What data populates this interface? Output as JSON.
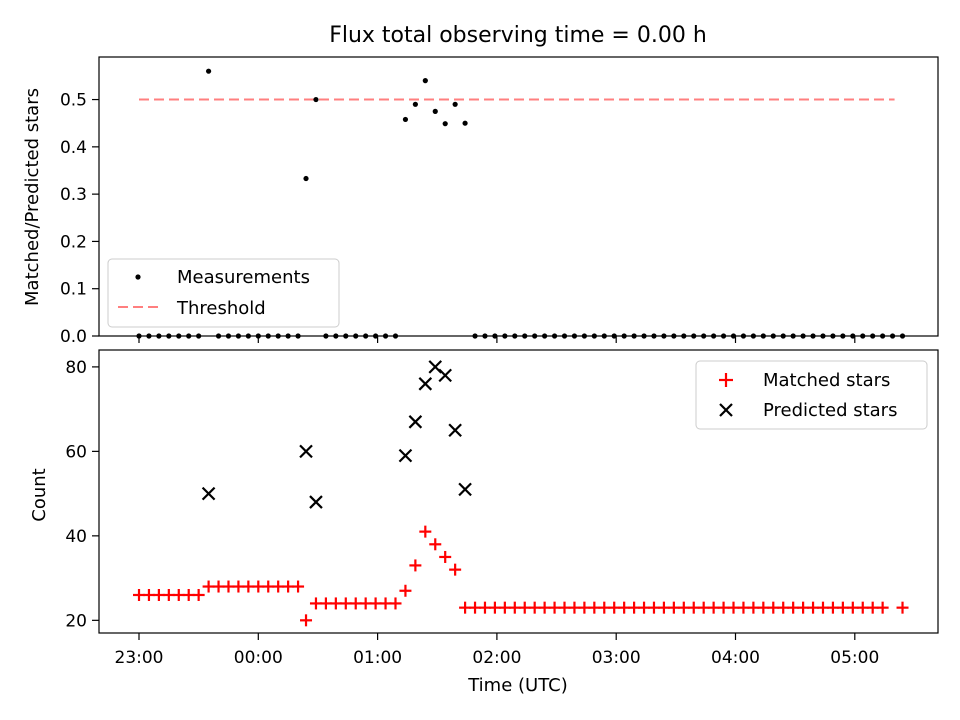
{
  "title": "Flux total observing time = 0.00 h",
  "xlabel": "Time (UTC)",
  "x_ticks": [
    "23:00",
    "00:00",
    "01:00",
    "02:00",
    "03:00",
    "04:00",
    "05:00"
  ],
  "chart_data": [
    {
      "type": "scatter",
      "ylabel": "Matched/Predicted stars",
      "ylim": [
        0,
        0.59
      ],
      "y_ticks": [
        "0.0",
        "0.1",
        "0.2",
        "0.3",
        "0.4",
        "0.5"
      ],
      "legend": {
        "placement": "lower-left",
        "entries": [
          "Measurements",
          "Threshold"
        ]
      },
      "threshold": {
        "name": "Threshold",
        "value": 0.5,
        "x_range": [
          "23:00",
          "05:20"
        ],
        "color": "#ff7f7f"
      },
      "series": [
        {
          "name": "Measurements",
          "color": "#000000",
          "points": [
            [
              "23:00",
              0
            ],
            [
              "23:05",
              0
            ],
            [
              "23:10",
              0
            ],
            [
              "23:15",
              0
            ],
            [
              "23:20",
              0
            ],
            [
              "23:25",
              0
            ],
            [
              "23:30",
              0
            ],
            [
              "23:35",
              0.56
            ],
            [
              "23:40",
              0
            ],
            [
              "23:45",
              0
            ],
            [
              "23:50",
              0
            ],
            [
              "23:55",
              0
            ],
            [
              "00:00",
              0
            ],
            [
              "00:05",
              0
            ],
            [
              "00:10",
              0
            ],
            [
              "00:15",
              0
            ],
            [
              "00:20",
              0
            ],
            [
              "00:24",
              0.333
            ],
            [
              "00:29",
              0.5
            ],
            [
              "00:34",
              0
            ],
            [
              "00:39",
              0
            ],
            [
              "00:44",
              0
            ],
            [
              "00:49",
              0
            ],
            [
              "00:54",
              0
            ],
            [
              "00:59",
              0
            ],
            [
              "01:04",
              0
            ],
            [
              "01:09",
              0
            ],
            [
              "01:14",
              0.458
            ],
            [
              "01:19",
              0.49
            ],
            [
              "01:24",
              0.54
            ],
            [
              "01:29",
              0.475
            ],
            [
              "01:34",
              0.449
            ],
            [
              "01:39",
              0.49
            ],
            [
              "01:44",
              0.45
            ],
            [
              "01:49",
              0
            ],
            [
              "01:54",
              0
            ],
            [
              "01:59",
              0
            ],
            [
              "02:04",
              0
            ],
            [
              "02:09",
              0
            ],
            [
              "02:14",
              0
            ],
            [
              "02:19",
              0
            ],
            [
              "02:24",
              0
            ],
            [
              "02:29",
              0
            ],
            [
              "02:34",
              0
            ],
            [
              "02:39",
              0
            ],
            [
              "02:44",
              0
            ],
            [
              "02:49",
              0
            ],
            [
              "02:54",
              0
            ],
            [
              "02:59",
              0
            ],
            [
              "03:04",
              0
            ],
            [
              "03:09",
              0
            ],
            [
              "03:14",
              0
            ],
            [
              "03:19",
              0
            ],
            [
              "03:24",
              0
            ],
            [
              "03:29",
              0
            ],
            [
              "03:34",
              0
            ],
            [
              "03:39",
              0
            ],
            [
              "03:44",
              0
            ],
            [
              "03:49",
              0
            ],
            [
              "03:54",
              0
            ],
            [
              "03:59",
              0
            ],
            [
              "04:04",
              0
            ],
            [
              "04:09",
              0
            ],
            [
              "04:14",
              0
            ],
            [
              "04:19",
              0
            ],
            [
              "04:24",
              0
            ],
            [
              "04:29",
              0
            ],
            [
              "04:34",
              0
            ],
            [
              "04:39",
              0
            ],
            [
              "04:44",
              0
            ],
            [
              "04:49",
              0
            ],
            [
              "04:54",
              0
            ],
            [
              "04:59",
              0
            ],
            [
              "05:04",
              0
            ],
            [
              "05:09",
              0
            ],
            [
              "05:14",
              0
            ],
            [
              "05:19",
              0
            ],
            [
              "05:24",
              0
            ]
          ]
        }
      ]
    },
    {
      "type": "scatter",
      "ylabel": "Count",
      "ylim": [
        17,
        84
      ],
      "y_ticks": [
        "20",
        "40",
        "60",
        "80"
      ],
      "legend": {
        "placement": "top-right",
        "entries": [
          "Matched stars",
          "Predicted stars"
        ]
      },
      "series": [
        {
          "name": "Matched stars",
          "color": "#ff0000",
          "points": [
            [
              "23:00",
              26
            ],
            [
              "23:05",
              26
            ],
            [
              "23:10",
              26
            ],
            [
              "23:15",
              26
            ],
            [
              "23:20",
              26
            ],
            [
              "23:25",
              26
            ],
            [
              "23:30",
              26
            ],
            [
              "23:35",
              28
            ],
            [
              "23:40",
              28
            ],
            [
              "23:45",
              28
            ],
            [
              "23:50",
              28
            ],
            [
              "23:55",
              28
            ],
            [
              "00:00",
              28
            ],
            [
              "00:05",
              28
            ],
            [
              "00:10",
              28
            ],
            [
              "00:15",
              28
            ],
            [
              "00:20",
              28
            ],
            [
              "00:24",
              20
            ],
            [
              "00:29",
              24
            ],
            [
              "00:34",
              24
            ],
            [
              "00:39",
              24
            ],
            [
              "00:44",
              24
            ],
            [
              "00:49",
              24
            ],
            [
              "00:54",
              24
            ],
            [
              "00:59",
              24
            ],
            [
              "01:04",
              24
            ],
            [
              "01:09",
              24
            ],
            [
              "01:14",
              27
            ],
            [
              "01:19",
              33
            ],
            [
              "01:24",
              41
            ],
            [
              "01:29",
              38
            ],
            [
              "01:34",
              35
            ],
            [
              "01:39",
              32
            ],
            [
              "01:44",
              23
            ],
            [
              "01:49",
              23
            ],
            [
              "01:54",
              23
            ],
            [
              "01:59",
              23
            ],
            [
              "02:04",
              23
            ],
            [
              "02:09",
              23
            ],
            [
              "02:14",
              23
            ],
            [
              "02:19",
              23
            ],
            [
              "02:24",
              23
            ],
            [
              "02:29",
              23
            ],
            [
              "02:34",
              23
            ],
            [
              "02:39",
              23
            ],
            [
              "02:44",
              23
            ],
            [
              "02:49",
              23
            ],
            [
              "02:54",
              23
            ],
            [
              "02:59",
              23
            ],
            [
              "03:04",
              23
            ],
            [
              "03:09",
              23
            ],
            [
              "03:14",
              23
            ],
            [
              "03:19",
              23
            ],
            [
              "03:24",
              23
            ],
            [
              "03:29",
              23
            ],
            [
              "03:34",
              23
            ],
            [
              "03:39",
              23
            ],
            [
              "03:44",
              23
            ],
            [
              "03:49",
              23
            ],
            [
              "03:54",
              23
            ],
            [
              "03:59",
              23
            ],
            [
              "04:04",
              23
            ],
            [
              "04:09",
              23
            ],
            [
              "04:14",
              23
            ],
            [
              "04:19",
              23
            ],
            [
              "04:24",
              23
            ],
            [
              "04:29",
              23
            ],
            [
              "04:34",
              23
            ],
            [
              "04:39",
              23
            ],
            [
              "04:44",
              23
            ],
            [
              "04:49",
              23
            ],
            [
              "04:54",
              23
            ],
            [
              "04:59",
              23
            ],
            [
              "05:04",
              23
            ],
            [
              "05:09",
              23
            ],
            [
              "05:14",
              23
            ],
            [
              "05:24",
              23
            ]
          ]
        },
        {
          "name": "Predicted stars",
          "color": "#000000",
          "points": [
            [
              "23:35",
              50
            ],
            [
              "00:24",
              60
            ],
            [
              "00:29",
              48
            ],
            [
              "01:14",
              59
            ],
            [
              "01:19",
              67
            ],
            [
              "01:24",
              76
            ],
            [
              "01:29",
              80
            ],
            [
              "01:34",
              78
            ],
            [
              "01:39",
              65
            ],
            [
              "01:44",
              51
            ]
          ]
        }
      ]
    }
  ]
}
